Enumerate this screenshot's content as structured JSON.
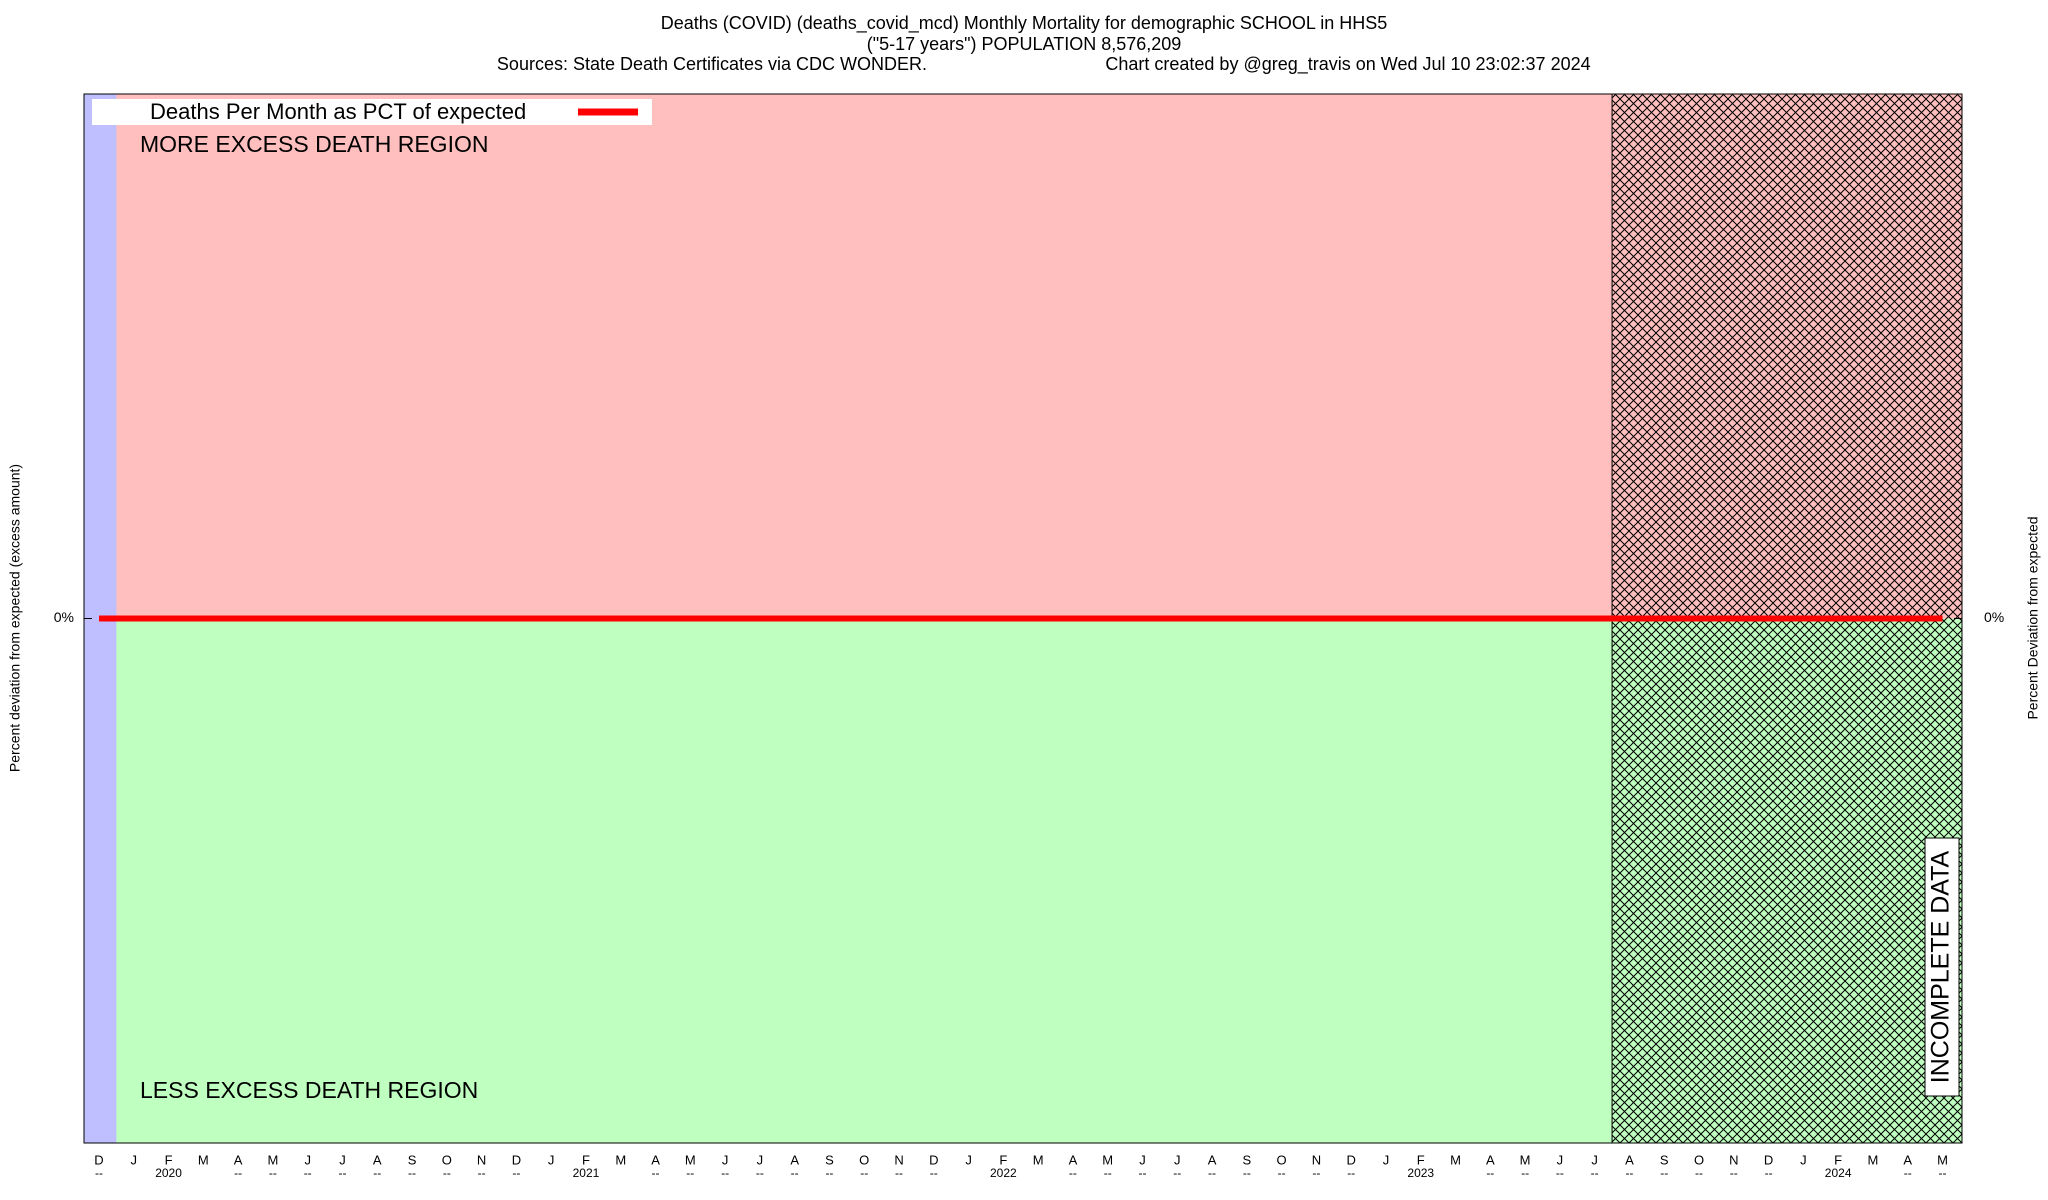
{
  "chart_data": {
    "type": "line",
    "title": "Deaths (COVID) (deaths_covid_mcd) Monthly Mortality for demographic SCHOOL in HHS5",
    "subtitle": "(\"5-17 years\") POPULATION 8,576,209",
    "sources": "Sources: State Death Certificates via CDC WONDER.",
    "credit": "Chart created by @greg_travis on Wed Jul 10 23:02:37 2024",
    "ylabel": "Percent deviation from expected (excess amount)",
    "y2label": "Percent Deviation from expected",
    "annotations": {
      "upper": "MORE EXCESS DEATH REGION",
      "lower": "LESS EXCESS DEATH REGION",
      "incomplete": "INCOMPLETE DATA"
    },
    "categories": [
      "D",
      "J",
      "F",
      "M",
      "A",
      "M",
      "J",
      "J",
      "A",
      "S",
      "O",
      "N",
      "D",
      "J",
      "F",
      "M",
      "A",
      "M",
      "J",
      "J",
      "A",
      "S",
      "O",
      "N",
      "D",
      "J",
      "F",
      "M",
      "A",
      "M",
      "J",
      "J",
      "A",
      "S",
      "O",
      "N",
      "D",
      "J",
      "F",
      "M",
      "A",
      "M",
      "J",
      "J",
      "A",
      "S",
      "O",
      "N",
      "D",
      "J",
      "F",
      "M",
      "A",
      "M"
    ],
    "category_sublabels": [
      "--",
      null,
      "2020",
      null,
      "--",
      "--",
      "--",
      "--",
      "--",
      "--",
      "--",
      "--",
      "--",
      null,
      "2021",
      null,
      "--",
      "--",
      "--",
      "--",
      "--",
      "--",
      "--",
      "--",
      "--",
      null,
      "2022",
      null,
      "--",
      "--",
      "--",
      "--",
      "--",
      "--",
      "--",
      "--",
      "--",
      null,
      "2023",
      null,
      "--",
      "--",
      "--",
      "--",
      "--",
      "--",
      "--",
      "--",
      "--",
      null,
      "2024",
      null,
      "--",
      "--"
    ],
    "incomplete_from": 44,
    "series": [
      {
        "name": "Deaths Per Month as PCT of expected",
        "color": "#ff0000",
        "values": [
          0,
          0,
          0,
          0,
          0,
          0,
          0,
          0,
          0,
          0,
          0,
          0,
          0,
          0,
          0,
          0,
          0,
          0,
          0,
          0,
          0,
          0,
          0,
          0,
          0,
          0,
          0,
          0,
          0,
          0,
          0,
          0,
          0,
          0,
          0,
          0,
          0,
          0,
          0,
          0,
          0,
          0,
          0,
          0,
          0,
          0,
          0,
          0,
          0,
          0,
          0,
          0,
          0,
          0
        ]
      }
    ],
    "ylim": [
      -100,
      100
    ],
    "yticks": [
      {
        "value": 0,
        "label": "0%"
      }
    ],
    "y2lim": [
      -100,
      100
    ],
    "y2ticks": [
      {
        "value": 0,
        "label": "0%"
      }
    ],
    "legend": "top-left"
  }
}
